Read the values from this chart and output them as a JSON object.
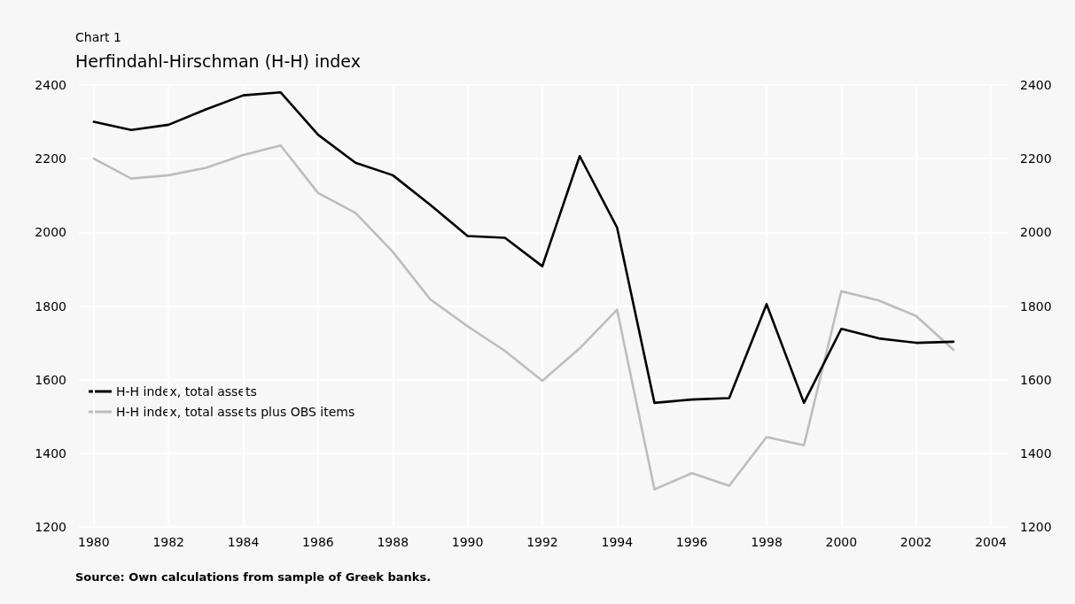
{
  "chart_data": {
    "type": "line",
    "title": "Herfindahl-Hirschman (H-H) index",
    "subtitle": "Chart 1",
    "x": [
      1980,
      1981,
      1982,
      1983,
      1984,
      1985,
      1986,
      1987,
      1988,
      1989,
      1990,
      1991,
      1992,
      1993,
      1994,
      1995,
      1996,
      1997,
      1998,
      1999,
      2000,
      2001,
      2002,
      2003
    ],
    "series": [
      {
        "name": "H-H index, total assets",
        "color": "#000000",
        "values": [
          2300,
          2278,
          2292,
          2334,
          2372,
          2380,
          2265,
          2189,
          2155,
          2075,
          1990,
          1985,
          1908,
          2207,
          2013,
          1537,
          1546,
          1550,
          1805,
          1537,
          1738,
          1712,
          1700,
          1703
        ]
      },
      {
        "name": "H-H index, total assets plus OBS items",
        "color": "#bdbdbd",
        "values": [
          2200,
          2146,
          2155,
          2175,
          2210,
          2236,
          2107,
          2053,
          1947,
          1818,
          1745,
          1678,
          1597,
          1685,
          1790,
          1302,
          1346,
          1312,
          1444,
          1422,
          1840,
          1815,
          1773,
          1681
        ]
      }
    ],
    "xlim": [
      1979.6,
      2004.45
    ],
    "xticks": [
      1980,
      1982,
      1984,
      1986,
      1988,
      1990,
      1992,
      1994,
      1996,
      1998,
      2000,
      2002,
      2004
    ],
    "ylim": [
      1200,
      2400
    ],
    "yticks": [
      1200,
      1400,
      1600,
      1800,
      2000,
      2200,
      2400
    ],
    "y2lim": [
      1200,
      2400
    ],
    "y2ticks": [
      1200,
      1400,
      1600,
      1800,
      2000,
      2200,
      2400
    ],
    "grid": true,
    "legend": "bottom left",
    "marker": "none",
    "line_style": "solid",
    "annotations": [
      "Source: Own calculations from sample of Greek banks."
    ]
  }
}
